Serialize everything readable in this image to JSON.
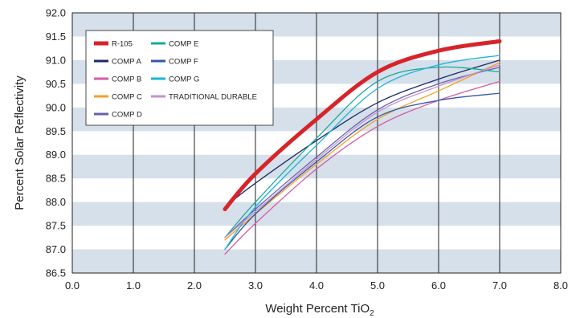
{
  "chart_data": {
    "type": "line",
    "xlabel": "Weight Percent TiO",
    "xlabel_subscript": "2",
    "ylabel": "Percent Solar Reflectivity",
    "xlim": [
      0,
      8
    ],
    "ylim": [
      86.5,
      92.0
    ],
    "x_ticks": [
      "0.0",
      "1.0",
      "2.0",
      "3.0",
      "4.0",
      "5.0",
      "6.0",
      "7.0",
      "8.0"
    ],
    "y_ticks": [
      "86.5",
      "87.0",
      "87.5",
      "88.0",
      "88.5",
      "89.0",
      "89.5",
      "90.0",
      "90.5",
      "91.0",
      "91.5",
      "92.0"
    ],
    "grid": "vertical lines with alternating horizontal bands",
    "band_color": "#d5e0ea",
    "legend_position": "top-left",
    "x": [
      2.5,
      3.0,
      4.0,
      5.0,
      6.0,
      7.0
    ],
    "series": [
      {
        "name": "R-105",
        "color": "#d7232a",
        "width": 5,
        "values": [
          87.85,
          88.6,
          89.75,
          90.75,
          91.2,
          91.4
        ]
      },
      {
        "name": "COMP A",
        "color": "#1e2a66",
        "width": 1.3,
        "values": [
          87.9,
          88.4,
          89.3,
          90.1,
          90.6,
          91.0
        ]
      },
      {
        "name": "COMP B",
        "color": "#d65aa5",
        "width": 1.3,
        "values": [
          86.9,
          87.55,
          88.7,
          89.6,
          90.15,
          90.55
        ]
      },
      {
        "name": "COMP C",
        "color": "#f4a027",
        "width": 1.3,
        "values": [
          87.2,
          87.75,
          88.8,
          89.75,
          90.35,
          90.95
        ]
      },
      {
        "name": "COMP D",
        "color": "#6a5fb0",
        "width": 1.3,
        "values": [
          87.25,
          87.85,
          88.95,
          89.95,
          90.5,
          90.85
        ]
      },
      {
        "name": "COMP E",
        "color": "#1aa89a",
        "width": 1.3,
        "values": [
          87.25,
          88.0,
          89.35,
          90.55,
          90.85,
          90.75
        ]
      },
      {
        "name": "COMP F",
        "color": "#3457a8",
        "width": 1.3,
        "values": [
          87.0,
          87.75,
          88.85,
          89.8,
          90.15,
          90.3
        ]
      },
      {
        "name": "COMP G",
        "color": "#1ab6d8",
        "width": 1.3,
        "values": [
          87.0,
          87.9,
          89.2,
          90.4,
          90.9,
          91.1
        ]
      },
      {
        "name": "TRADITIONAL DURABLE",
        "color": "#c592cc",
        "width": 1.3,
        "values": [
          87.25,
          87.8,
          88.9,
          89.9,
          90.45,
          90.9
        ]
      }
    ]
  }
}
